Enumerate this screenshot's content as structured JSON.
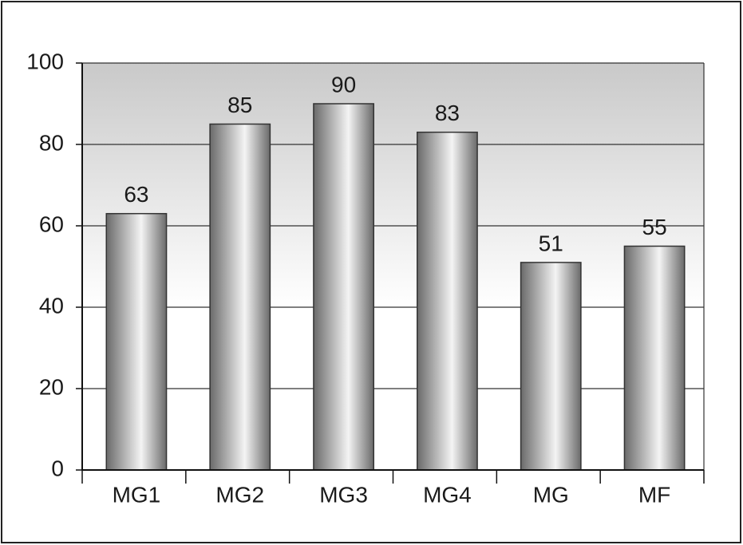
{
  "chart_data": {
    "type": "bar",
    "categories": [
      "MG1",
      "MG2",
      "MG3",
      "MG4",
      "MG",
      "MF"
    ],
    "values": [
      63,
      85,
      90,
      83,
      51,
      55
    ],
    "color": "#6a6a6a",
    "ylim": [
      0,
      100
    ],
    "yticks": [
      0,
      20,
      40,
      60,
      80,
      100
    ],
    "grid": true
  }
}
